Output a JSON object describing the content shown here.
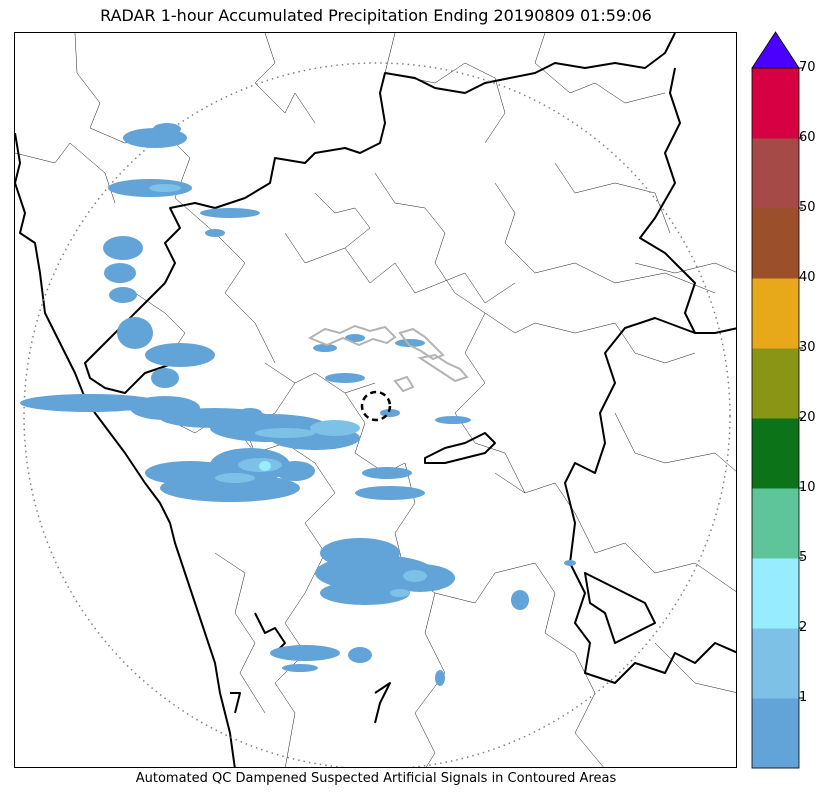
{
  "title": "RADAR 1-hour Accumulated Precipitation Ending 20190809 01:59:06",
  "footer": "Automated QC Dampened Suspected Artificial Signals in Contoured Areas",
  "colorbar": {
    "extend": "max",
    "extend_color": "#4b00ff",
    "bins": [
      {
        "color": "#62a3d8"
      },
      {
        "color": "#7dc1e6"
      },
      {
        "color": "#97edff"
      },
      {
        "color": "#5ec49a"
      },
      {
        "color": "#0d7318"
      },
      {
        "color": "#8a9415"
      },
      {
        "color": "#e7a819"
      },
      {
        "color": "#9b4f2a"
      },
      {
        "color": "#a54a46"
      },
      {
        "color": "#d70043"
      }
    ],
    "tick_labels": [
      "1",
      "2",
      "5",
      "10",
      "20",
      "30",
      "40",
      "50",
      "60",
      "70"
    ]
  },
  "map": {
    "radar_range_ring": "dotted",
    "radar_location_marker": "dashed-circle",
    "precip_light_color": "#62a3d8",
    "precip_mid_color": "#7dc1e6",
    "precip_heavy_color": "#97edff",
    "qc_contour_color": "#b4b4b4",
    "border_color": "#000000"
  }
}
